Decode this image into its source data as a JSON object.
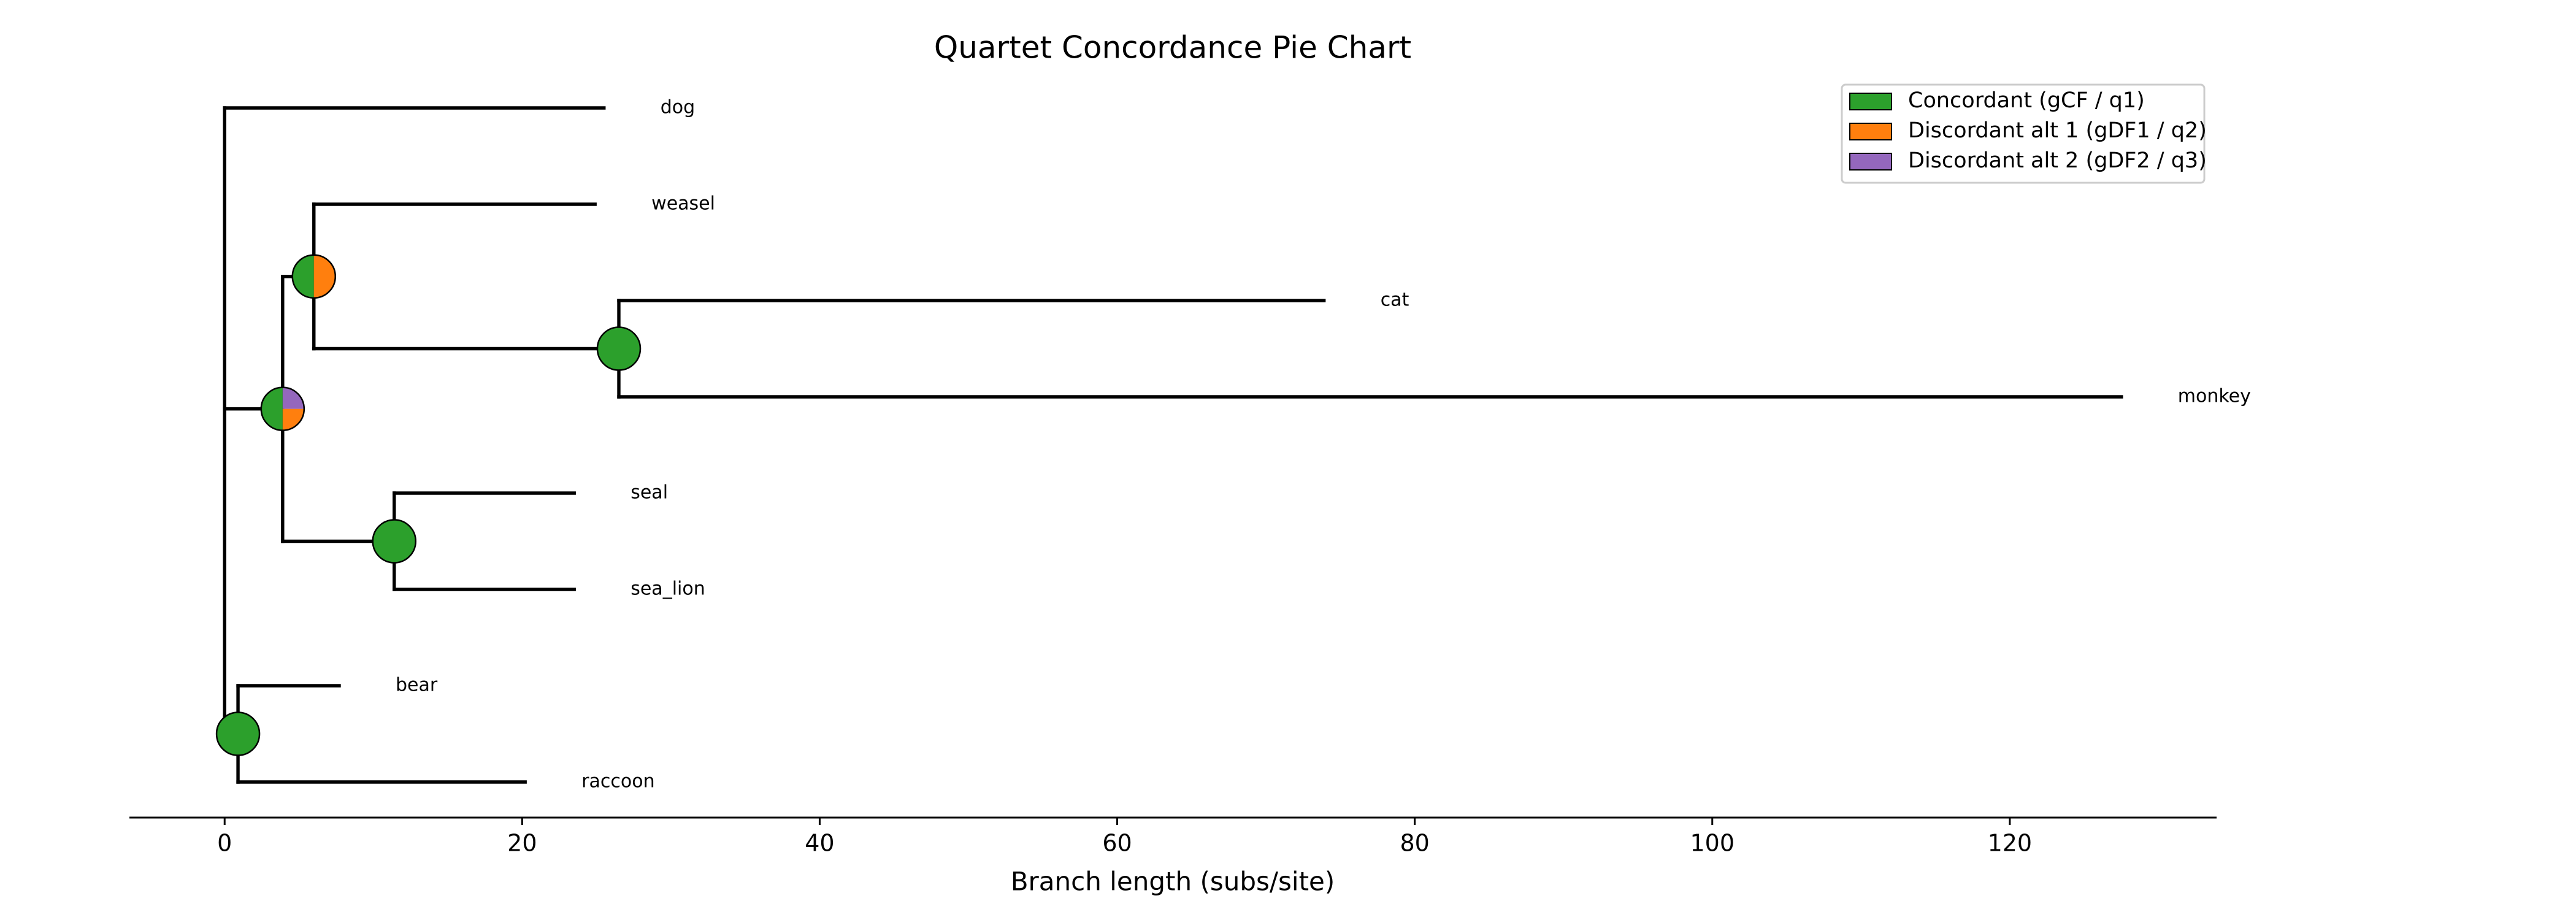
{
  "chart_data": {
    "type": "phylogram",
    "title": "Quartet Concordance Pie Chart",
    "x_label": "Branch length (subs/site)",
    "xlim": [
      -6.4,
      133.9
    ],
    "xticks": [
      0,
      20,
      40,
      60,
      80,
      100,
      120
    ],
    "legend": "upper right",
    "series": [
      {
        "name": "Concordant (gCF / q1)",
        "color": "#2ca02c"
      },
      {
        "name": "Discordant alt 1 (gDF1 / q2)",
        "color": "#ff7f0e"
      },
      {
        "name": "Discordant alt 2 (gDF2 / q3)",
        "color": "#9467bd"
      }
    ],
    "tree": {
      "x": 0,
      "children": [
        {
          "x": 25.5,
          "label": "dog"
        },
        {
          "x": 3.9,
          "values": [
            0.5,
            0.25,
            0.25
          ],
          "children": [
            {
              "x": 6.0,
              "values": [
                0.5,
                0.5,
                0
              ],
              "children": [
                {
                  "x": 24.9,
                  "label": "weasel"
                },
                {
                  "x": 26.5,
                  "values": [
                    1,
                    0,
                    0
                  ],
                  "children": [
                    {
                      "x": 73.9,
                      "label": "cat"
                    },
                    {
                      "x": 127.5,
                      "label": "monkey"
                    }
                  ]
                }
              ]
            },
            {
              "x": 11.4,
              "values": [
                1,
                0,
                0
              ],
              "children": [
                {
                  "x": 23.5,
                  "label": "seal"
                },
                {
                  "x": 23.5,
                  "label": "sea_lion"
                }
              ]
            }
          ]
        },
        {
          "x": 0.9,
          "values": [
            1,
            0,
            0
          ],
          "children": [
            {
              "x": 7.7,
              "label": "bear"
            },
            {
              "x": 20.2,
              "label": "raccoon"
            }
          ]
        }
      ]
    }
  }
}
